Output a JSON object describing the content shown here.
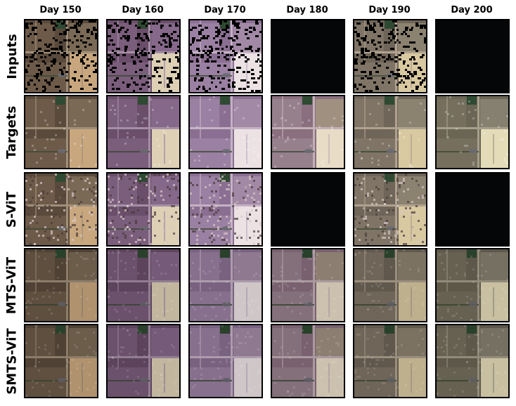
{
  "columns": [
    "Day 150",
    "Day 160",
    "Day 170",
    "Day 180",
    "Day 190",
    "Day 200"
  ],
  "rows": [
    {
      "label": "Inputs",
      "style": "masked",
      "tiles": [
        "available",
        "available",
        "available",
        "missing",
        "available",
        "missing"
      ]
    },
    {
      "label": "Targets",
      "style": "clear",
      "tiles": [
        "available",
        "available",
        "available",
        "available",
        "available",
        "available"
      ]
    },
    {
      "label": "S-ViT",
      "style": "speckle",
      "tiles": [
        "available",
        "available",
        "available",
        "missing",
        "available",
        "missing"
      ]
    },
    {
      "label": "MTS-ViT",
      "style": "smooth",
      "tiles": [
        "available",
        "available",
        "available",
        "available",
        "available",
        "available"
      ]
    },
    {
      "label": "SMTS-ViT",
      "style": "smooth",
      "tiles": [
        "available",
        "available",
        "available",
        "available",
        "available",
        "available"
      ]
    }
  ],
  "palettes": {
    "Day 150": {
      "field": "#5a4a3c",
      "field2": "#6d5a48",
      "right": "#7a6a55",
      "bright": "#c9a77e",
      "road": "#a08f79"
    },
    "Day 160": {
      "field": "#6a4e6a",
      "field2": "#7b5d7c",
      "right": "#86688a",
      "bright": "#ddd0b5",
      "road": "#a58fa5"
    },
    "Day 170": {
      "field": "#8a6f92",
      "field2": "#9a80a2",
      "right": "#a28aa6",
      "bright": "#ece2e4",
      "road": "#c4b2c4"
    },
    "Day 180": {
      "field": "#8a6f7f",
      "field2": "#96808c",
      "right": "#a09080",
      "bright": "#e8dcc6",
      "road": "#c2b0b6"
    },
    "Day 190": {
      "field": "#6f6558",
      "field2": "#7f7465",
      "right": "#8c8270",
      "bright": "#d9c9a0",
      "road": "#b0a290"
    },
    "Day 200": {
      "field": "#6a6555",
      "field2": "#766f5d",
      "right": "#868070",
      "bright": "#e4dbb8",
      "road": "#a79f8c"
    }
  },
  "colors": {
    "missing": "#050608",
    "mask": "#000000",
    "tree": "#2f4a32",
    "border": "#000000"
  }
}
